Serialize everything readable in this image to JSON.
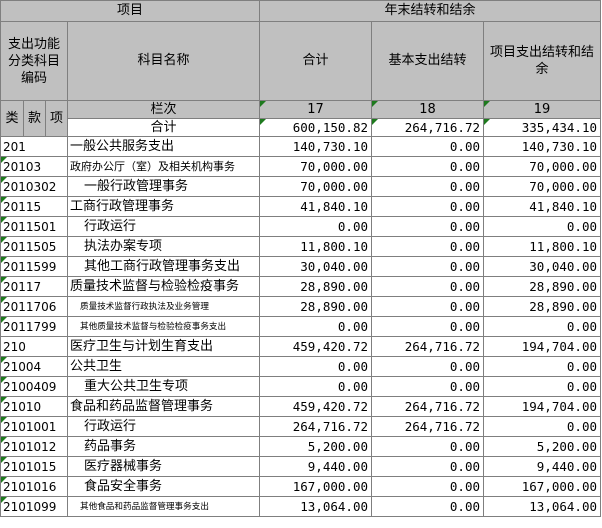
{
  "header": {
    "item_group": "项目",
    "year_end_group": "年末结转和结余",
    "function_code_col": "支出功能分类科目编码",
    "subject_name_col": "科目名称",
    "total_col": "合计",
    "basic_col": "基本支出结转",
    "project_col": "项目支出结转和结余",
    "class_label": "类",
    "section_label": "款",
    "item_label": "项",
    "row_seq_label": "栏次",
    "col_17": "17",
    "col_18": "18",
    "col_19": "19"
  },
  "total_row": {
    "label": "合计",
    "total": "600,150.82",
    "basic": "264,716.72",
    "project": "335,434.10"
  },
  "rows": [
    {
      "code": "201",
      "name": "一般公共服务支出",
      "total": "140,730.10",
      "basic": "0.00",
      "project": "140,730.10"
    },
    {
      "code": "20103",
      "name": "政府办公厅（室）及相关机构事务",
      "total": "70,000.00",
      "basic": "0.00",
      "project": "70,000.00"
    },
    {
      "code": "2010302",
      "name": "一般行政管理事务",
      "total": "70,000.00",
      "basic": "0.00",
      "project": "70,000.00"
    },
    {
      "code": "20115",
      "name": "工商行政管理事务",
      "total": "41,840.10",
      "basic": "0.00",
      "project": "41,840.10"
    },
    {
      "code": "2011501",
      "name": "行政运行",
      "total": "0.00",
      "basic": "0.00",
      "project": "0.00"
    },
    {
      "code": "2011505",
      "name": "执法办案专项",
      "total": "11,800.10",
      "basic": "0.00",
      "project": "11,800.10"
    },
    {
      "code": "2011599",
      "name": "其他工商行政管理事务支出",
      "total": "30,040.00",
      "basic": "0.00",
      "project": "30,040.00"
    },
    {
      "code": "20117",
      "name": "质量技术监督与检验检疫事务",
      "total": "28,890.00",
      "basic": "0.00",
      "project": "28,890.00"
    },
    {
      "code": "2011706",
      "name": "质量技术监督行政执法及业务管理",
      "total": "28,890.00",
      "basic": "0.00",
      "project": "28,890.00"
    },
    {
      "code": "2011799",
      "name": "其他质量技术监督与检验检疫事务支出",
      "total": "0.00",
      "basic": "0.00",
      "project": "0.00"
    },
    {
      "code": "210",
      "name": "医疗卫生与计划生育支出",
      "total": "459,420.72",
      "basic": "264,716.72",
      "project": "194,704.00"
    },
    {
      "code": "21004",
      "name": "公共卫生",
      "total": "0.00",
      "basic": "0.00",
      "project": "0.00"
    },
    {
      "code": "2100409",
      "name": "重大公共卫生专项",
      "total": "0.00",
      "basic": "0.00",
      "project": "0.00"
    },
    {
      "code": "21010",
      "name": "食品和药品监督管理事务",
      "total": "459,420.72",
      "basic": "264,716.72",
      "project": "194,704.00"
    },
    {
      "code": "2101001",
      "name": "行政运行",
      "total": "264,716.72",
      "basic": "264,716.72",
      "project": "0.00"
    },
    {
      "code": "2101012",
      "name": "药品事务",
      "total": "5,200.00",
      "basic": "0.00",
      "project": "5,200.00"
    },
    {
      "code": "2101015",
      "name": "医疗器械事务",
      "total": "9,440.00",
      "basic": "0.00",
      "project": "9,440.00"
    },
    {
      "code": "2101016",
      "name": "食品安全事务",
      "total": "167,000.00",
      "basic": "0.00",
      "project": "167,000.00"
    },
    {
      "code": "2101099",
      "name": "其他食品和药品监督管理事务支出",
      "total": "13,064.00",
      "basic": "0.00",
      "project": "13,064.00"
    }
  ]
}
